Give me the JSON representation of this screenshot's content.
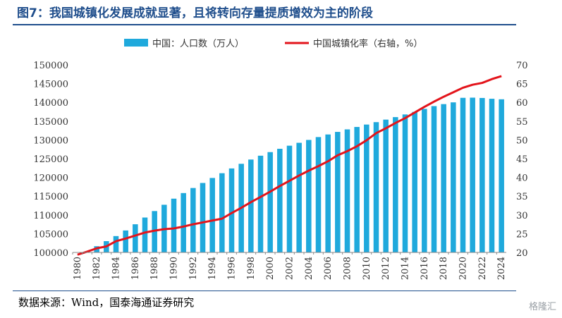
{
  "title": "图7：我国城镇化发展成就显著，且将转向存量提质增效为主的阶段",
  "source": "数据来源：Wind，国泰海通证券研究",
  "watermark": "格隆汇",
  "colors": {
    "bar": "#1fa9dc",
    "line": "#e3141b",
    "title": "#1f4e8c"
  },
  "chart_data": {
    "type": "bar",
    "x": [
      1980,
      1981,
      1982,
      1983,
      1984,
      1985,
      1986,
      1987,
      1988,
      1989,
      1990,
      1991,
      1992,
      1993,
      1994,
      1995,
      1996,
      1997,
      1998,
      1999,
      2000,
      2001,
      2002,
      2003,
      2004,
      2005,
      2006,
      2007,
      2008,
      2009,
      2010,
      2011,
      2012,
      2013,
      2014,
      2015,
      2016,
      2017,
      2018,
      2019,
      2020,
      2021,
      2022,
      2023,
      2024
    ],
    "x_tick_labels": [
      "1980",
      "1982",
      "1984",
      "1986",
      "1988",
      "1990",
      "1992",
      "1994",
      "1996",
      "1998",
      "2000",
      "2002",
      "2004",
      "2006",
      "2008",
      "2010",
      "2012",
      "2014",
      "2016",
      "2018",
      "2020",
      "2022",
      "2024"
    ],
    "series": [
      {
        "name": "中国：人口数（万人）",
        "type": "bar",
        "axis": "left",
        "values": [
          98705,
          100072,
          101654,
          103008,
          104357,
          105851,
          107507,
          109300,
          111026,
          112704,
          114333,
          115823,
          117171,
          118517,
          119850,
          121121,
          122389,
          123626,
          124761,
          125786,
          126743,
          127627,
          128453,
          129227,
          129988,
          130756,
          131448,
          132129,
          132802,
          133450,
          134091,
          134735,
          135404,
          136072,
          136782,
          137462,
          138271,
          139008,
          139538,
          140005,
          141212,
          141260,
          141175,
          140967,
          140828
        ]
      },
      {
        "name": "中国城镇化率（右轴，%）",
        "type": "line",
        "axis": "right",
        "values": [
          19.4,
          20.2,
          21.1,
          21.6,
          23.0,
          23.7,
          24.5,
          25.3,
          25.8,
          26.2,
          26.4,
          26.9,
          27.5,
          28.0,
          28.5,
          29.0,
          30.5,
          31.9,
          33.4,
          34.8,
          36.2,
          37.7,
          39.1,
          40.5,
          41.8,
          43.0,
          44.3,
          45.9,
          47.0,
          48.3,
          49.9,
          51.8,
          53.1,
          54.5,
          55.8,
          57.3,
          58.8,
          60.2,
          61.5,
          62.7,
          63.9,
          64.7,
          65.2,
          66.2,
          67.0
        ]
      }
    ],
    "yleft": {
      "range": [
        100000,
        150000
      ],
      "ticks": [
        100000,
        105000,
        110000,
        115000,
        120000,
        125000,
        130000,
        135000,
        140000,
        145000,
        150000
      ]
    },
    "yright": {
      "range": [
        20,
        70
      ],
      "ticks": [
        20,
        25,
        30,
        35,
        40,
        45,
        50,
        55,
        60,
        65,
        70
      ]
    },
    "legend_placement": "top-center",
    "grid": false
  }
}
